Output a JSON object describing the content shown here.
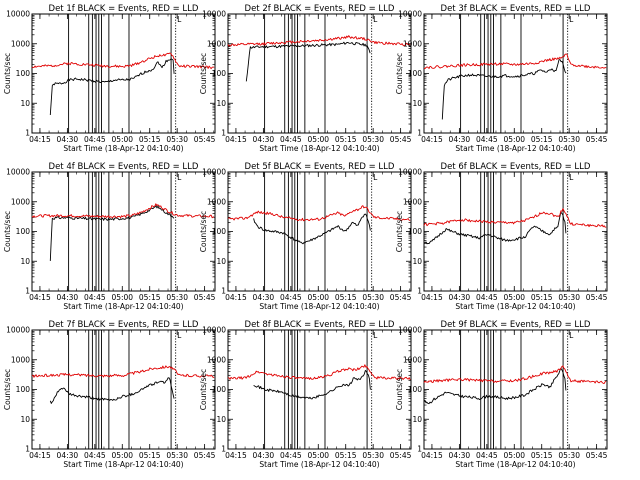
{
  "colors": {
    "events": "#000000",
    "lld": "#e00000",
    "axes": "#000000",
    "background": "#ffffff"
  },
  "shared": {
    "xlabel": "Start Time (18-Apr-12 04:10:40)",
    "ylabel": "Counts/sec",
    "x_tick_labels": [
      "04:15",
      "04:30",
      "04:45",
      "05:00",
      "05:15",
      "05:30",
      "05:45"
    ],
    "x_tick_minutes": [
      4.33,
      19.33,
      34.33,
      49.33,
      64.33,
      79.33,
      94.33
    ],
    "xlim_minutes": [
      0,
      100
    ],
    "y_tick_labels": [
      "1",
      "10",
      "100",
      "1000",
      "10000"
    ],
    "y_tick_values": [
      1,
      10,
      100,
      1000,
      10000
    ],
    "ylim": [
      1,
      10000
    ],
    "y_scale": "log",
    "event_line_minutes": [
      20,
      31,
      33,
      35,
      36.5,
      38,
      42,
      53,
      76
    ],
    "dotted_line_minutes": [
      78.5
    ],
    "bracket_label": "L"
  },
  "chart_data": [
    {
      "type": "line",
      "title": "Det 1f BLACK = Events, RED = LLD",
      "series": [
        {
          "name": "Events",
          "color": "#000000",
          "start_minute": 10,
          "end_minute": 78,
          "x": [
            10,
            11,
            12,
            14,
            17,
            20,
            25,
            30,
            35,
            40,
            45,
            50,
            55,
            60,
            63,
            66,
            69,
            71,
            73,
            75,
            77,
            78
          ],
          "y": [
            4,
            35,
            45,
            45,
            48,
            60,
            65,
            60,
            55,
            50,
            60,
            60,
            65,
            100,
            120,
            140,
            250,
            150,
            250,
            300,
            320,
            50
          ]
        },
        {
          "name": "LLD",
          "color": "#e00000",
          "start_minute": 0,
          "end_minute": 100,
          "x": [
            0,
            10,
            20,
            30,
            40,
            50,
            55,
            60,
            65,
            70,
            73,
            76,
            78,
            80,
            90,
            100
          ],
          "y": [
            170,
            180,
            220,
            200,
            180,
            170,
            190,
            250,
            330,
            420,
            400,
            480,
            300,
            180,
            170,
            160
          ]
        }
      ]
    },
    {
      "type": "line",
      "title": "Det 2f BLACK = Events, RED = LLD",
      "series": [
        {
          "name": "Events",
          "color": "#000000",
          "start_minute": 10,
          "end_minute": 78,
          "x": [
            10,
            12,
            20,
            30,
            40,
            50,
            60,
            66,
            70,
            76,
            78
          ],
          "y": [
            50,
            750,
            800,
            820,
            850,
            900,
            950,
            1100,
            1000,
            900,
            400
          ]
        },
        {
          "name": "LLD",
          "color": "#e00000",
          "start_minute": 0,
          "end_minute": 100,
          "x": [
            0,
            10,
            20,
            30,
            40,
            50,
            60,
            66,
            70,
            76,
            80,
            90,
            100
          ],
          "y": [
            900,
            950,
            1000,
            1100,
            1200,
            1300,
            1500,
            1700,
            1600,
            1400,
            1100,
            1000,
            950
          ]
        }
      ]
    },
    {
      "type": "line",
      "title": "Det 3f BLACK = Events, RED = LLD",
      "series": [
        {
          "name": "Events",
          "color": "#000000",
          "start_minute": 10,
          "end_minute": 78,
          "x": [
            10,
            11,
            13,
            16,
            20,
            25,
            30,
            35,
            40,
            45,
            50,
            55,
            60,
            64,
            67,
            70,
            72,
            74,
            76,
            78
          ],
          "y": [
            3,
            40,
            60,
            70,
            80,
            90,
            85,
            80,
            80,
            85,
            80,
            90,
            100,
            130,
            110,
            150,
            110,
            300,
            220,
            80
          ]
        },
        {
          "name": "LLD",
          "color": "#e00000",
          "start_minute": 0,
          "end_minute": 100,
          "x": [
            0,
            10,
            20,
            30,
            40,
            50,
            60,
            65,
            70,
            75,
            78,
            80,
            90,
            100
          ],
          "y": [
            160,
            170,
            190,
            200,
            210,
            200,
            220,
            260,
            300,
            320,
            450,
            200,
            170,
            160
          ]
        }
      ]
    },
    {
      "type": "line",
      "title": "Det 4f BLACK = Events, RED = LLD",
      "series": [
        {
          "name": "Events",
          "color": "#000000",
          "start_minute": 10,
          "end_minute": 78,
          "x": [
            10,
            11,
            15,
            20,
            25,
            30,
            35,
            40,
            45,
            50,
            55,
            60,
            65,
            68,
            71,
            74,
            78
          ],
          "y": [
            10,
            280,
            290,
            290,
            280,
            270,
            260,
            260,
            260,
            280,
            300,
            400,
            550,
            700,
            550,
            400,
            300
          ]
        },
        {
          "name": "LLD",
          "color": "#e00000",
          "start_minute": 0,
          "end_minute": 100,
          "x": [
            0,
            10,
            20,
            30,
            40,
            50,
            55,
            60,
            65,
            68,
            71,
            74,
            78,
            80,
            90,
            100
          ],
          "y": [
            330,
            340,
            340,
            330,
            320,
            320,
            350,
            450,
            650,
            800,
            650,
            500,
            380,
            350,
            330,
            320
          ]
        }
      ]
    },
    {
      "type": "line",
      "title": "Det 5f BLACK = Events, RED = LLD",
      "series": [
        {
          "name": "Events",
          "color": "#000000",
          "start_minute": 14,
          "end_minute": 78,
          "x": [
            14,
            16,
            20,
            25,
            30,
            35,
            40,
            45,
            50,
            55,
            60,
            64,
            68,
            71,
            73,
            75,
            77,
            78
          ],
          "y": [
            250,
            150,
            110,
            100,
            90,
            60,
            40,
            50,
            70,
            100,
            150,
            100,
            200,
            150,
            300,
            400,
            200,
            90
          ]
        },
        {
          "name": "LLD",
          "color": "#e00000",
          "start_minute": 0,
          "end_minute": 100,
          "x": [
            0,
            10,
            16,
            20,
            25,
            30,
            40,
            50,
            55,
            60,
            64,
            68,
            71,
            74,
            76,
            78,
            80,
            90,
            100
          ],
          "y": [
            260,
            280,
            450,
            420,
            380,
            300,
            250,
            260,
            330,
            420,
            330,
            500,
            550,
            700,
            600,
            400,
            300,
            270,
            250
          ]
        }
      ]
    },
    {
      "type": "line",
      "title": "Det 6f BLACK = Events, RED = LLD",
      "series": [
        {
          "name": "Events",
          "color": "#000000",
          "start_minute": 0,
          "end_minute": 78,
          "x": [
            0,
            3,
            5,
            12,
            15,
            20,
            25,
            30,
            35,
            40,
            45,
            50,
            55,
            60,
            65,
            69,
            71,
            73,
            75,
            77,
            78
          ],
          "y": [
            45,
            40,
            50,
            120,
            100,
            80,
            70,
            60,
            80,
            60,
            50,
            55,
            65,
            150,
            100,
            80,
            120,
            130,
            500,
            200,
            40
          ]
        },
        {
          "name": "LLD",
          "color": "#e00000",
          "start_minute": 0,
          "end_minute": 100,
          "x": [
            0,
            10,
            20,
            30,
            40,
            50,
            55,
            60,
            65,
            70,
            73,
            76,
            78,
            80,
            90,
            100
          ],
          "y": [
            170,
            190,
            250,
            220,
            200,
            200,
            230,
            300,
            450,
            380,
            300,
            600,
            350,
            180,
            160,
            150
          ]
        }
      ]
    },
    {
      "type": "line",
      "title": "Det 7f BLACK = Events, RED = LLD",
      "series": [
        {
          "name": "Events",
          "color": "#000000",
          "start_minute": 10,
          "end_minute": 78,
          "x": [
            10,
            11,
            14,
            17,
            20,
            25,
            30,
            35,
            40,
            45,
            50,
            55,
            60,
            63,
            66,
            69,
            72,
            75,
            78
          ],
          "y": [
            40,
            35,
            80,
            120,
            70,
            60,
            55,
            50,
            45,
            45,
            60,
            70,
            100,
            130,
            150,
            180,
            170,
            250,
            40
          ]
        },
        {
          "name": "LLD",
          "color": "#e00000",
          "start_minute": 0,
          "end_minute": 100,
          "x": [
            0,
            10,
            20,
            30,
            40,
            50,
            55,
            60,
            65,
            70,
            75,
            78,
            80,
            90,
            100
          ],
          "y": [
            280,
            300,
            320,
            300,
            290,
            300,
            350,
            400,
            500,
            550,
            600,
            450,
            300,
            290,
            280
          ]
        }
      ]
    },
    {
      "type": "line",
      "title": "Det 8f BLACK = Events, RED = LLD",
      "series": [
        {
          "name": "Events",
          "color": "#000000",
          "start_minute": 14,
          "end_minute": 78,
          "x": [
            14,
            17,
            20,
            25,
            30,
            35,
            40,
            45,
            50,
            55,
            60,
            63,
            66,
            69,
            72,
            75,
            77,
            78
          ],
          "y": [
            150,
            120,
            100,
            90,
            80,
            60,
            55,
            50,
            60,
            80,
            120,
            150,
            130,
            250,
            200,
            400,
            300,
            80
          ]
        },
        {
          "name": "LLD",
          "color": "#e00000",
          "start_minute": 0,
          "end_minute": 100,
          "x": [
            0,
            10,
            16,
            20,
            25,
            30,
            40,
            50,
            55,
            60,
            65,
            70,
            75,
            78,
            80,
            90,
            100
          ],
          "y": [
            230,
            250,
            400,
            350,
            300,
            280,
            230,
            250,
            300,
            400,
            500,
            450,
            650,
            400,
            250,
            240,
            230
          ]
        }
      ]
    },
    {
      "type": "line",
      "title": "Det 9f BLACK = Events, RED = LLD",
      "series": [
        {
          "name": "Events",
          "color": "#000000",
          "start_minute": 0,
          "end_minute": 78,
          "x": [
            0,
            3,
            5,
            12,
            15,
            20,
            25,
            30,
            35,
            40,
            45,
            50,
            55,
            60,
            65,
            69,
            71,
            73,
            75,
            77,
            78
          ],
          "y": [
            40,
            35,
            45,
            80,
            70,
            60,
            55,
            50,
            60,
            55,
            50,
            55,
            65,
            100,
            150,
            120,
            200,
            300,
            500,
            250,
            40
          ]
        },
        {
          "name": "LLD",
          "color": "#e00000",
          "start_minute": 0,
          "end_minute": 100,
          "x": [
            0,
            10,
            20,
            30,
            40,
            50,
            55,
            60,
            65,
            70,
            73,
            76,
            78,
            80,
            90,
            100
          ],
          "y": [
            180,
            200,
            220,
            200,
            190,
            200,
            230,
            280,
            350,
            380,
            420,
            650,
            350,
            200,
            180,
            170
          ]
        }
      ]
    }
  ]
}
